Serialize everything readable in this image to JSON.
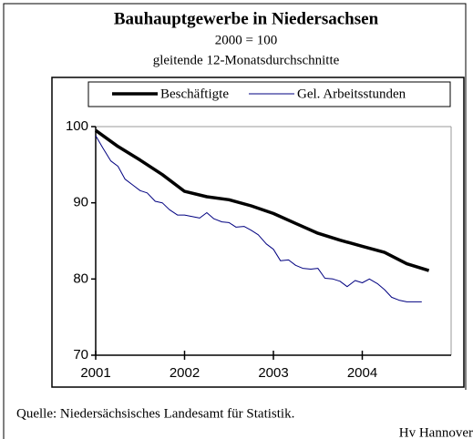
{
  "chart_data": {
    "type": "line",
    "title": "Bauhauptgewerbe in Niedersachsen",
    "subtitle": "2000 = 100",
    "subtitle2": "gleitende 12-Monatsdurchschnitte",
    "source": "Quelle: Niedersächsisches Landesamt für Statistik.",
    "credit": "Hv Hannover",
    "legend": "top",
    "xlim": [
      2001,
      2005
    ],
    "xticks": [
      2001,
      2002,
      2003,
      2004
    ],
    "ylim": [
      70,
      100
    ],
    "yticks": [
      70,
      80,
      90,
      100
    ],
    "series": [
      {
        "name": "Beschäftigte",
        "color": "#000000",
        "width": 3.5,
        "x": [
          2001.0,
          2001.25,
          2001.5,
          2001.75,
          2002.0,
          2002.25,
          2002.5,
          2002.75,
          2003.0,
          2003.25,
          2003.5,
          2003.75,
          2004.0,
          2004.25,
          2004.5,
          2004.75
        ],
        "values": [
          99.5,
          97.4,
          95.6,
          93.7,
          91.5,
          90.8,
          90.4,
          89.6,
          88.6,
          87.3,
          86.0,
          85.1,
          84.3,
          83.5,
          82.0,
          81.1
        ]
      },
      {
        "name": "Gel. Arbeitsstunden",
        "color": "#000080",
        "width": 1,
        "x": [
          2001.0,
          2001.08,
          2001.17,
          2001.25,
          2001.33,
          2001.42,
          2001.5,
          2001.58,
          2001.67,
          2001.75,
          2001.83,
          2001.92,
          2002.0,
          2002.17,
          2002.25,
          2002.33,
          2002.42,
          2002.5,
          2002.58,
          2002.67,
          2002.75,
          2002.83,
          2002.92,
          2003.0,
          2003.08,
          2003.17,
          2003.25,
          2003.33,
          2003.42,
          2003.5,
          2003.58,
          2003.67,
          2003.75,
          2003.83,
          2003.92,
          2004.0,
          2004.08,
          2004.17,
          2004.25,
          2004.33,
          2004.42,
          2004.5,
          2004.58,
          2004.67
        ],
        "values": [
          98.8,
          97.2,
          95.5,
          94.8,
          93.1,
          92.3,
          91.6,
          91.3,
          90.2,
          90.0,
          89.1,
          88.4,
          88.4,
          88.0,
          88.7,
          87.9,
          87.5,
          87.4,
          86.8,
          86.9,
          86.4,
          85.8,
          84.6,
          83.9,
          82.4,
          82.5,
          81.8,
          81.4,
          81.3,
          81.4,
          80.1,
          80.0,
          79.7,
          79.0,
          79.8,
          79.5,
          80.0,
          79.4,
          78.6,
          77.6,
          77.2,
          77.0,
          77.0,
          77.0
        ]
      }
    ]
  }
}
